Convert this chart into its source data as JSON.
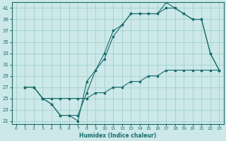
{
  "xlabel": "Humidex (Indice chaleur)",
  "background_color": "#cce8e8",
  "grid_color": "#99cccc",
  "line_color": "#1a6b6b",
  "xlim": [
    -0.5,
    23.5
  ],
  "ylim": [
    20.5,
    42
  ],
  "yticks": [
    21,
    23,
    25,
    27,
    29,
    31,
    33,
    35,
    37,
    39,
    41
  ],
  "xticks": [
    0,
    1,
    2,
    3,
    4,
    5,
    6,
    7,
    8,
    9,
    10,
    11,
    12,
    13,
    14,
    15,
    16,
    17,
    18,
    19,
    20,
    21,
    22,
    23
  ],
  "line1_x": [
    1,
    2,
    3,
    4,
    5,
    6,
    7,
    8,
    9,
    10,
    11,
    12,
    13,
    14,
    15,
    16,
    17,
    18,
    19,
    20,
    21,
    22,
    23
  ],
  "line1_y": [
    27,
    27,
    25,
    24,
    22,
    22,
    21,
    28,
    30,
    33,
    37,
    38,
    40,
    40,
    40,
    40,
    41,
    41,
    40,
    39,
    39,
    33,
    30
  ],
  "line2_x": [
    1,
    2,
    3,
    4,
    5,
    6,
    7,
    8,
    9,
    10,
    11,
    12,
    13,
    14,
    15,
    16,
    17,
    18,
    19,
    20,
    21,
    22,
    23
  ],
  "line2_y": [
    27,
    27,
    25,
    24,
    22,
    22,
    22,
    26,
    30,
    32,
    36,
    38,
    40,
    40,
    40,
    40,
    42,
    41,
    40,
    39,
    39,
    33,
    30
  ],
  "line3_x": [
    1,
    2,
    3,
    4,
    5,
    6,
    7,
    8,
    9,
    10,
    11,
    12,
    13,
    14,
    15,
    16,
    17,
    18,
    19,
    20,
    21,
    22,
    23
  ],
  "line3_y": [
    27,
    27,
    25,
    25,
    25,
    25,
    25,
    25,
    26,
    26,
    27,
    27,
    28,
    28,
    29,
    29,
    30,
    30,
    30,
    30,
    30,
    30,
    30
  ]
}
